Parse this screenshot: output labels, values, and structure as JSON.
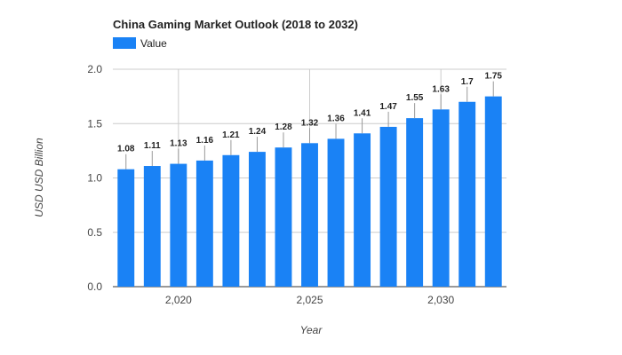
{
  "chart_data": {
    "type": "bar",
    "title": "China Gaming Market Outlook (2018 to 2032)",
    "xlabel": "Year",
    "ylabel": "USD USD Billion",
    "ylim": [
      0,
      2.0
    ],
    "yticks": [
      "0.0",
      "0.5",
      "1.0",
      "1.5",
      "2.0"
    ],
    "xticks": [
      {
        "value": 2020,
        "label": "2,020"
      },
      {
        "value": 2025,
        "label": "2,025"
      },
      {
        "value": 2030,
        "label": "2,030"
      }
    ],
    "grid": true,
    "legend_position": "top-left",
    "bar_color": "#1a82f5",
    "series": [
      {
        "name": "Value",
        "x": [
          2018,
          2019,
          2020,
          2021,
          2022,
          2023,
          2024,
          2025,
          2026,
          2027,
          2028,
          2029,
          2030,
          2031,
          2032
        ],
        "values": [
          1.08,
          1.11,
          1.13,
          1.16,
          1.21,
          1.24,
          1.28,
          1.32,
          1.36,
          1.41,
          1.47,
          1.55,
          1.63,
          1.7,
          1.75
        ],
        "labels": [
          "1.08",
          "1.11",
          "1.13",
          "1.16",
          "1.21",
          "1.24",
          "1.28",
          "1.32",
          "1.36",
          "1.41",
          "1.47",
          "1.55",
          "1.63",
          "1.7",
          "1.75"
        ]
      }
    ]
  }
}
